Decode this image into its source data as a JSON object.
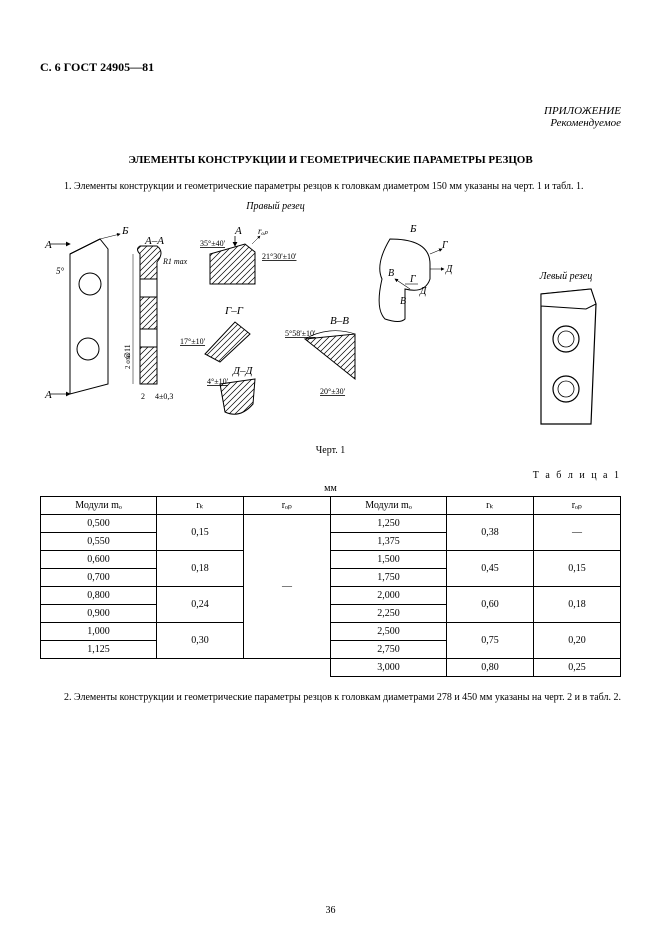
{
  "header": "С. 6 ГОСТ 24905—81",
  "appendix": {
    "line1": "ПРИЛОЖЕНИЕ",
    "line2": "Рекомендуемое"
  },
  "title": "ЭЛЕМЕНТЫ КОНСТРУКЦИИ И ГЕОМЕТРИЧЕСКИЕ ПАРАМЕТРЫ РЕЗЦОВ",
  "para1": "1. Элементы конструкции и геометрические параметры резцов к головкам диаметром 150 мм указаны на черт. 1 и табл. 1.",
  "figure1": {
    "labelLeft": "Правый резец",
    "labelRight": "Левый резец",
    "caption": "Черт. 1",
    "annotations": {
      "A": "A",
      "AA": "A–A",
      "B": "Б",
      "rop": "rₒₚ",
      "ang35": "35°±40'",
      "ang21": "21°30'±10'",
      "R1max": "R1 max",
      "ang5": "5°",
      "GG": "Г–Г",
      "ang17": "17°±10'",
      "DD": "Д–Д",
      "ang4": "4°±10'",
      "BV": "В–В",
      "ang558": "5°58'±10'",
      "ang20": "20°±30'",
      "G": "Г",
      "D": "Д",
      "V": "В",
      "diam11": "∅11",
      "tol": "2 отв.",
      "dim2": "2",
      "dim403": "4±0,3"
    }
  },
  "tableLabel": "Т а б л и ц а 1",
  "unit": "мм",
  "table": {
    "headers": {
      "mod": "Модули  mₒ",
      "r": "rₖ",
      "ro": "rₒₚ"
    },
    "left": [
      {
        "mods": [
          "0,500",
          "0,550"
        ],
        "r": "0,15"
      },
      {
        "mods": [
          "0,600",
          "0,700"
        ],
        "r": "0,18"
      },
      {
        "mods": [
          "0,800",
          "0,900"
        ],
        "r": "0,24"
      },
      {
        "mods": [
          "1,000",
          "1,125"
        ],
        "r": "0,30"
      }
    ],
    "leftRo": "—",
    "right": [
      {
        "mods": [
          "1,250",
          "1,375"
        ],
        "r": "0,38",
        "ro": "—"
      },
      {
        "mods": [
          "1,500",
          "1,750"
        ],
        "r": "0,45",
        "ro": "0,15"
      },
      {
        "mods": [
          "2,000",
          "2,250"
        ],
        "r": "0,60",
        "ro": "0,18"
      },
      {
        "mods": [
          "2,500",
          "2,750"
        ],
        "r": "0,75",
        "ro": "0,20"
      },
      {
        "mods": [
          "3,000"
        ],
        "r": "0,80",
        "ro": "0,25"
      }
    ]
  },
  "para2": "2. Элементы конструкции и геометрические параметры резцов к головкам диаметрами 278 и 450 мм указаны на черт. 2 и в табл. 2.",
  "pageNumber": "36",
  "style": {
    "stroke": "#000000",
    "hatchSpacing": 5
  }
}
